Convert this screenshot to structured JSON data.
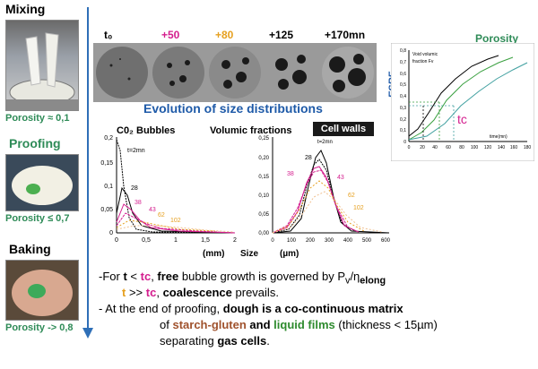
{
  "stages": [
    {
      "label": "Mixing",
      "porosity": "Porosity ≈ 0,1",
      "label_color": "#000000"
    },
    {
      "label": "Proofing",
      "porosity": "Porosity ≤ 0,7",
      "label_color": "#2e8b57"
    },
    {
      "label": "Baking",
      "porosity": "Porosity -> 0,8",
      "label_color": "#000000"
    }
  ],
  "time_labels": [
    {
      "text": "t₀",
      "color": "#000000"
    },
    {
      "text": "+50",
      "color": "#d41e8e"
    },
    {
      "text": "+80",
      "color": "#e6a020"
    },
    {
      "text": "+125",
      "color": "#000000"
    },
    {
      "text": "+170mn",
      "color": "#000000"
    }
  ],
  "section_title": "Evolution of size distributions",
  "cell_walls_label": "Cell walls",
  "bubbles_panel": {
    "title": "C0₂ Bubbles",
    "y_ticks": [
      "0",
      "0,05",
      "0,1",
      "0,15",
      "0,2"
    ],
    "x_ticks": [
      "0",
      "0,5",
      "1",
      "1,5",
      "2"
    ],
    "x_unit": "(mm)",
    "curve_labels": [
      {
        "text": "t=2mn",
        "color": "#000000"
      },
      {
        "text": "28",
        "color": "#000000"
      },
      {
        "text": "38",
        "color": "#d41e8e"
      },
      {
        "text": "43",
        "color": "#d41e8e"
      },
      {
        "text": "62",
        "color": "#e6a020"
      },
      {
        "text": "102",
        "color": "#e6a020"
      }
    ]
  },
  "walls_panel": {
    "title": "Volumic fractions",
    "y_ticks": [
      "0,00",
      "0,05",
      "0,10",
      "0,15",
      "0,20",
      "0,25"
    ],
    "x_ticks": [
      "0",
      "100",
      "200",
      "300",
      "400",
      "500",
      "600"
    ],
    "x_unit": "(µm)",
    "curve_labels": [
      {
        "text": "t=2mn",
        "color": "#000000"
      },
      {
        "text": "28",
        "color": "#000000"
      },
      {
        "text": "38",
        "color": "#d41e8e"
      },
      {
        "text": "43",
        "color": "#d41e8e"
      },
      {
        "text": "62",
        "color": "#e6a020"
      },
      {
        "text": "102",
        "color": "#e6a020"
      }
    ]
  },
  "size_label": "Size",
  "porosity_chart": {
    "title": "Porosity",
    "ylabel": "ESRF",
    "legend_line1": "Void volumic",
    "legend_line2": "fraction Fv",
    "y_ticks": [
      "0",
      "0,1",
      "0,2",
      "0,3",
      "0,4",
      "0,5",
      "0,6",
      "0,7",
      "0,8"
    ],
    "x_ticks": [
      "0",
      "20",
      "40",
      "60",
      "80",
      "100",
      "120",
      "140",
      "160",
      "180"
    ],
    "x_unit": "time(mn)",
    "tc_label": "tc"
  },
  "bottom": {
    "line1_a": "-For ",
    "line1_t": "t",
    "line1_b": " < ",
    "line1_tc": "tc",
    "line1_c": ", ",
    "line1_free": "free",
    "line1_d": " bubble growth is governed by P",
    "line1_v": "v",
    "line1_e": "/η",
    "line1_elong": "elong",
    "line2_t": "t",
    "line2_a": " >> ",
    "line2_tc": "tc",
    "line2_b": ", ",
    "line2_coal": "coalescence",
    "line2_c": " prevails.",
    "line3_a": "- At the end of proofing, ",
    "line3_b": "dough is a co-continuous matrix",
    "line4_of": "of ",
    "line4_sg": "starch-gluten",
    "line4_and": " and ",
    "line4_lf": "liquid films",
    "line4_rest": " (thickness < 15µm)",
    "line5_sep": "separating ",
    "line5_gas": "gas cells",
    "line5_dot": "."
  },
  "colors": {
    "accent": "#1e5aa8",
    "pink": "#d41e8e",
    "orange": "#e6a020",
    "green": "#2e8b57"
  }
}
